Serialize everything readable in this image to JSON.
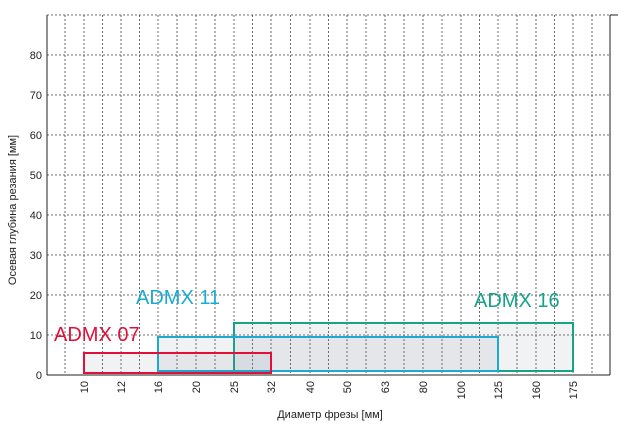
{
  "chart_data": {
    "type": "bar",
    "title": "",
    "xlabel": "Диаметр фрезы [мм]",
    "ylabel": "Осевая глубина резания [мм]",
    "x_scale": "categorical",
    "categories": [
      "10",
      "12",
      "16",
      "20",
      "25",
      "32",
      "40",
      "50",
      "63",
      "80",
      "100",
      "125",
      "160",
      "175"
    ],
    "yticks": [
      "0",
      "10",
      "20",
      "30",
      "40",
      "50",
      "60",
      "70",
      "80"
    ],
    "ylim": [
      0,
      90
    ],
    "grid": true,
    "series": [
      {
        "name": "ADMX 07",
        "color": "#e0103a",
        "diameter_range": [
          "10",
          "32"
        ],
        "depth_range": [
          0.5,
          5.5
        ]
      },
      {
        "name": "ADMX 11",
        "color": "#1aaad2",
        "diameter_range": [
          "16",
          "125"
        ],
        "depth_range": [
          1,
          9.5
        ]
      },
      {
        "name": "ADMX 16",
        "color": "#17a28a",
        "diameter_range": [
          "25",
          "175"
        ],
        "depth_range": [
          1,
          13
        ]
      }
    ]
  }
}
